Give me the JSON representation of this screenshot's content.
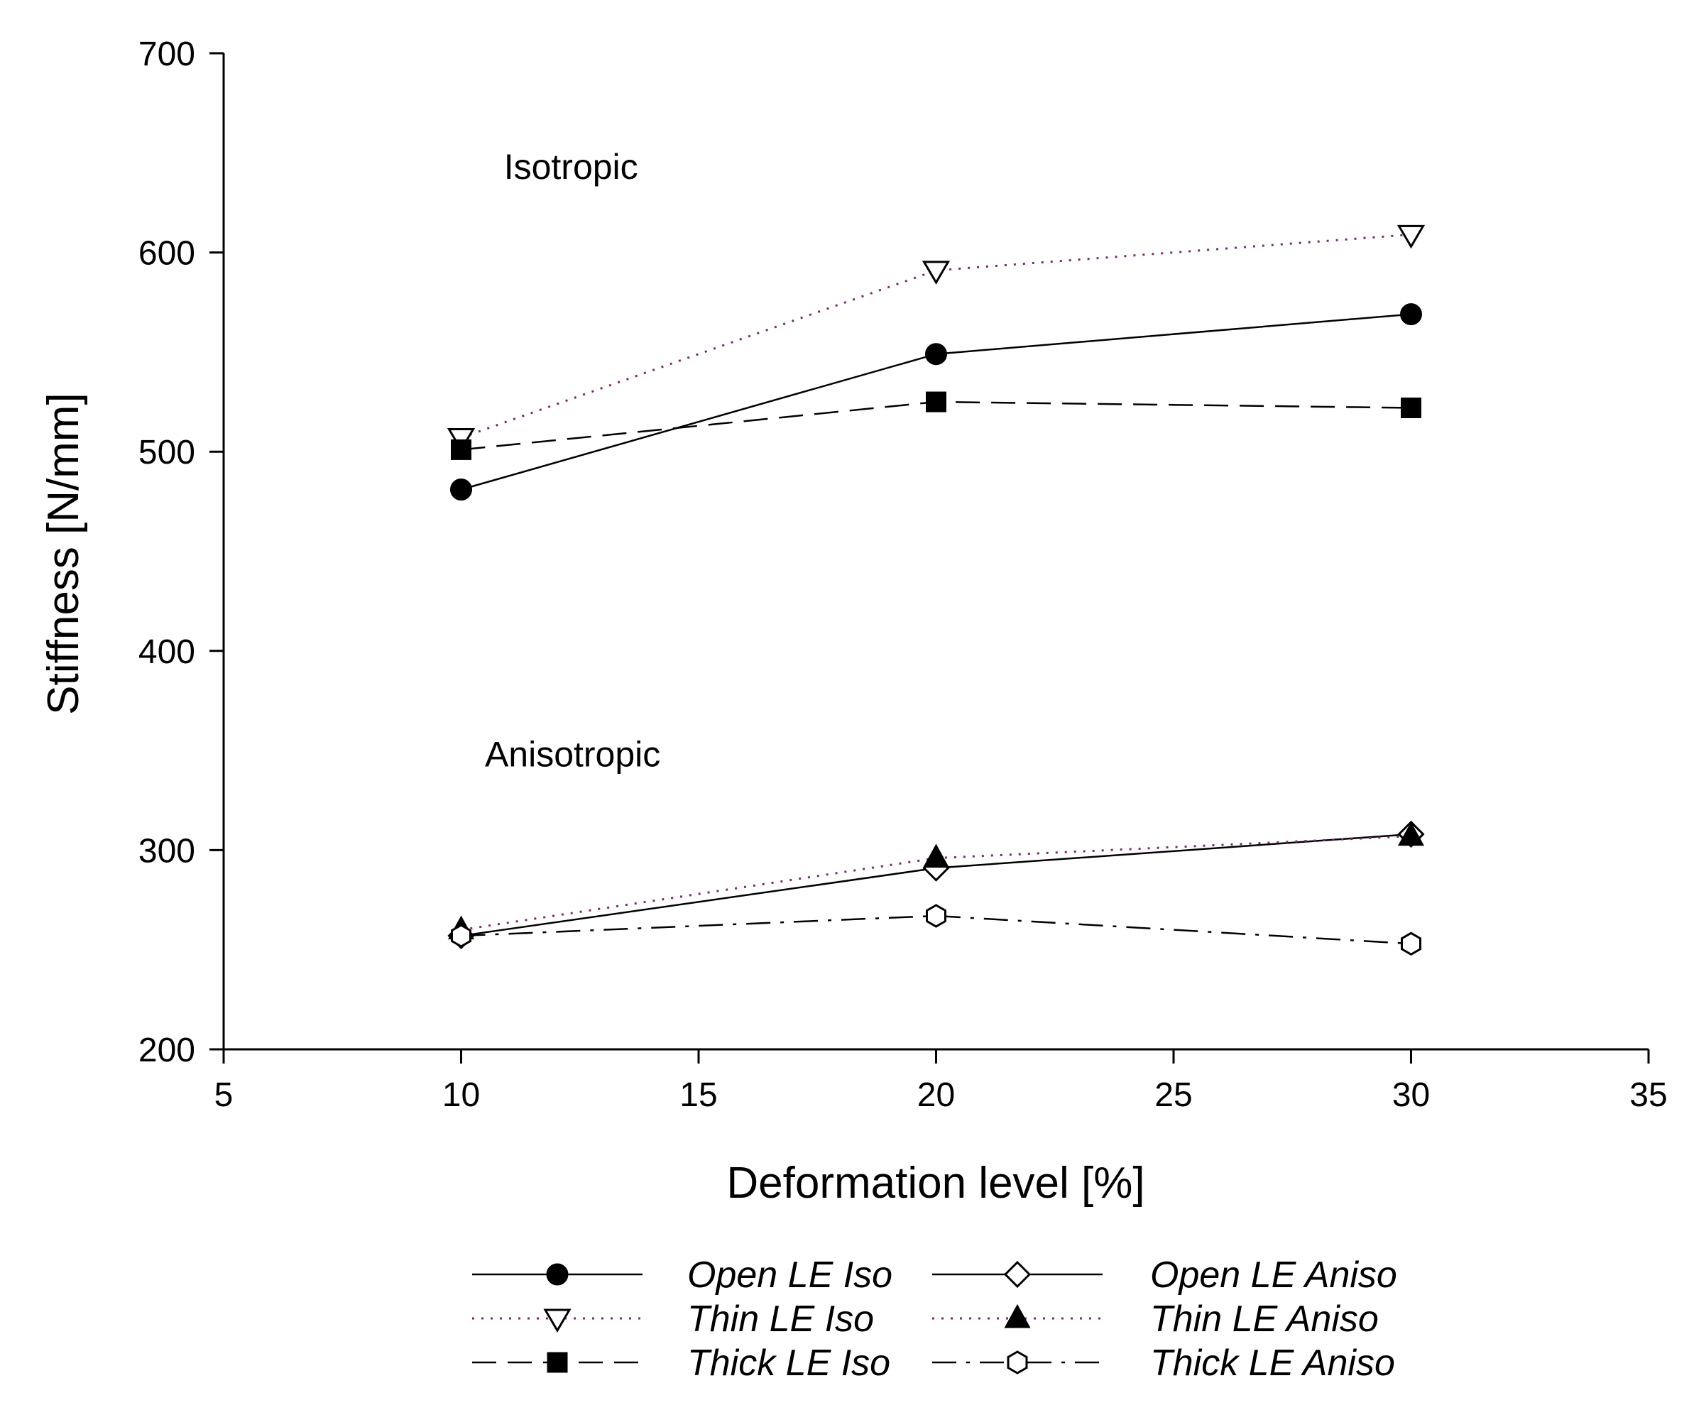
{
  "chart_data": {
    "type": "line",
    "title": "",
    "xlabel": "Deformation level [%]",
    "ylabel": "Stiffness [N/mm]",
    "xlim": [
      5,
      35
    ],
    "ylim": [
      200,
      700
    ],
    "xticks": [
      5,
      10,
      15,
      20,
      25,
      30,
      35
    ],
    "yticks": [
      200,
      300,
      400,
      500,
      600,
      700
    ],
    "grid": false,
    "legend_position": "bottom",
    "annotations": [
      {
        "text": "Isotropic",
        "x": 10.9,
        "y": 637
      },
      {
        "text": "Anisotropic",
        "x": 10.5,
        "y": 342
      }
    ],
    "x": [
      10,
      20,
      30
    ],
    "series": [
      {
        "name": "Open LE Iso",
        "values": [
          481,
          549,
          569
        ],
        "line": "solid",
        "marker": "circle",
        "filled": true,
        "color": "#000000"
      },
      {
        "name": "Open LE Aniso",
        "values": [
          257,
          291,
          308
        ],
        "line": "solid",
        "marker": "diamond",
        "filled": false,
        "color": "#000000"
      },
      {
        "name": "Thin LE Iso",
        "values": [
          507,
          591,
          609
        ],
        "line": "dotted",
        "marker": "triangle-down",
        "filled": false,
        "color": "#7a2a6e"
      },
      {
        "name": "Thin LE Aniso",
        "values": [
          260,
          296,
          307
        ],
        "line": "dotted",
        "marker": "triangle-up",
        "filled": true,
        "color": "#7a2a6e"
      },
      {
        "name": "Thick LE Iso",
        "values": [
          501,
          525,
          522
        ],
        "line": "dashed",
        "marker": "square",
        "filled": true,
        "color": "#000000"
      },
      {
        "name": "Thick LE Aniso",
        "values": [
          257,
          267,
          253
        ],
        "line": "dashdot",
        "marker": "hexagon",
        "filled": false,
        "color": "#000000"
      }
    ]
  }
}
